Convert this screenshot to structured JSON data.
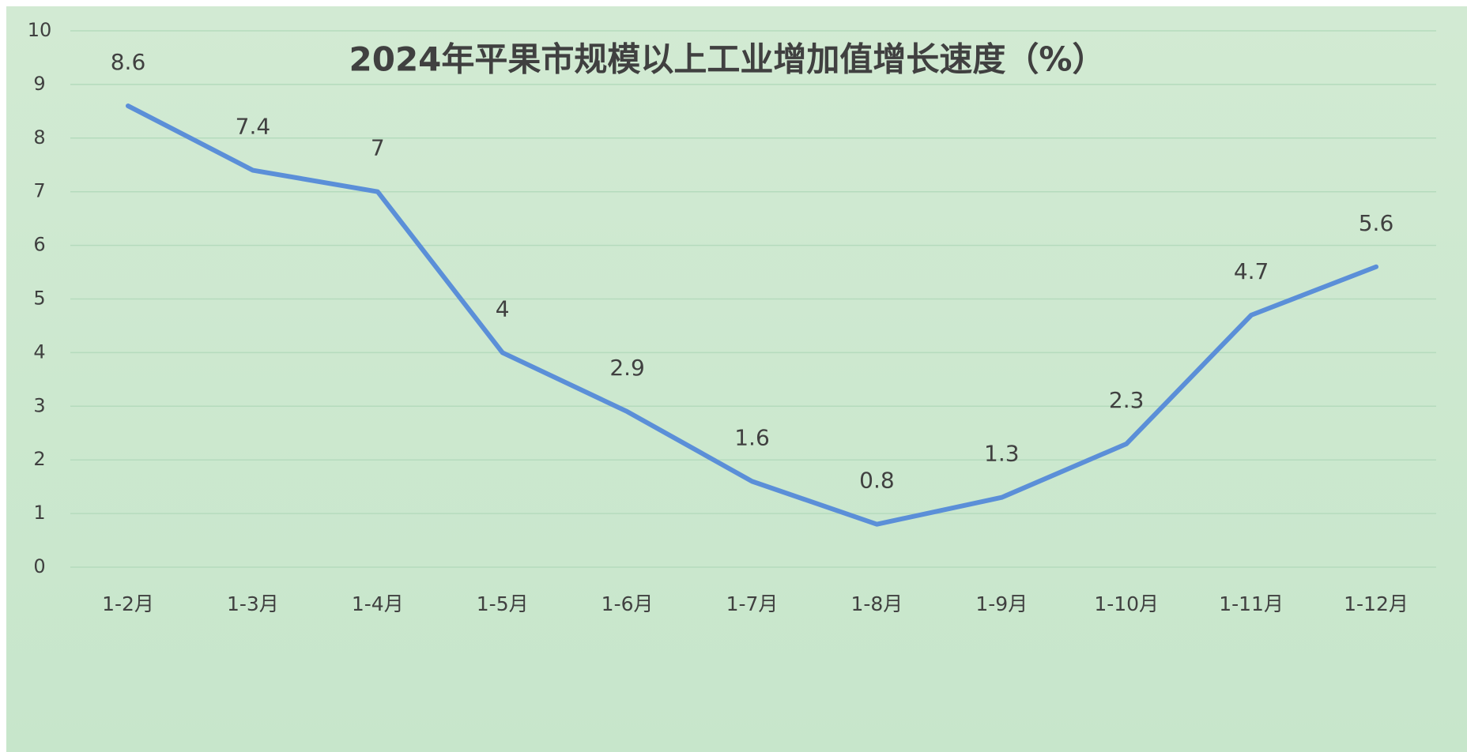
{
  "chart_data": {
    "type": "line",
    "title": "2024年平果市规模以上工业增加值增长速度（%）",
    "categories": [
      "1-2月",
      "1-3月",
      "1-4月",
      "1-5月",
      "1-6月",
      "1-7月",
      "1-8月",
      "1-9月",
      "1-10月",
      "1-11月",
      "1-12月"
    ],
    "values": [
      8.6,
      7.4,
      7,
      4,
      2.9,
      1.6,
      0.8,
      1.3,
      2.3,
      4.7,
      5.6
    ],
    "color": "#5b8fd8",
    "ylim": [
      0,
      10
    ],
    "yticks": [
      0,
      1,
      2,
      3,
      4,
      5,
      6,
      7,
      8,
      9,
      10
    ],
    "grid": true,
    "data_labels": true
  }
}
